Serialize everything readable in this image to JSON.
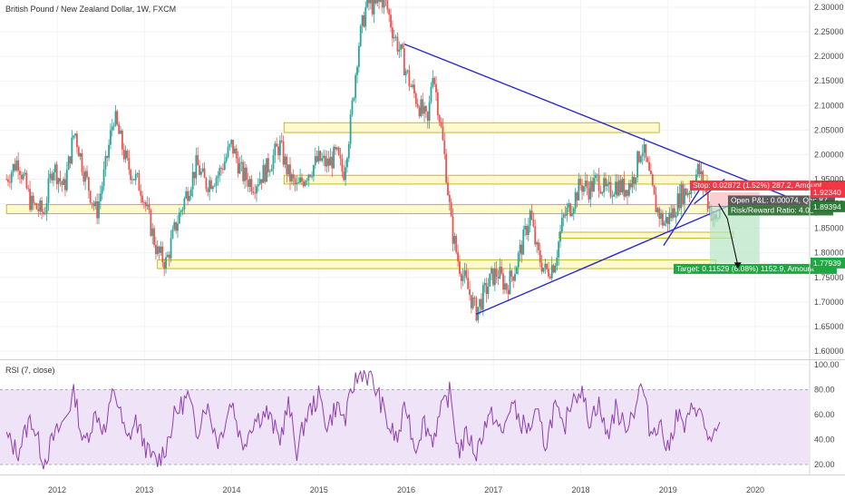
{
  "header": {
    "title": "British Pound / New Zealand Dollar, 1W, FXCM",
    "indicator_label": "RSI (7, close)"
  },
  "colors": {
    "bull": "#26a69a",
    "bear": "#ef5350",
    "trendline": "#2b2bc8",
    "zone_fill": "#fff9c4",
    "zone_stroke": "#b5a800",
    "rsi_line": "#8e3fb0",
    "rsi_band": "#efe3f7",
    "target": "#1ea844",
    "stop": "#f23645",
    "price_tag": "#2a7a36"
  },
  "chart_data": [
    {
      "type": "candlestick",
      "title": "British Pound / New Zealand Dollar, 1W, FXCM",
      "x_axis_labels": [
        "2012",
        "2013",
        "2014",
        "2015",
        "2016",
        "2017",
        "2018",
        "2019",
        "2020"
      ],
      "y_axis_labels": [
        "1.60000",
        "1.65000",
        "1.70000",
        "1.75000",
        "1.80000",
        "1.85000",
        "1.90000",
        "1.95000",
        "2.00000",
        "2.05000",
        "2.10000",
        "2.15000",
        "2.20000",
        "2.25000",
        "2.30000"
      ],
      "ylim": [
        1.58,
        2.32
      ],
      "xlim": [
        2011.42,
        2020.5
      ],
      "price_path": [
        [
          2011.42,
          1.95
        ],
        [
          2011.55,
          1.99
        ],
        [
          2011.7,
          1.9
        ],
        [
          2011.85,
          1.88
        ],
        [
          2011.95,
          1.98
        ],
        [
          2012.08,
          1.93
        ],
        [
          2012.2,
          2.05
        ],
        [
          2012.3,
          1.97
        ],
        [
          2012.45,
          1.88
        ],
        [
          2012.55,
          1.97
        ],
        [
          2012.65,
          2.08
        ],
        [
          2012.8,
          1.98
        ],
        [
          2012.9,
          1.95
        ],
        [
          2012.97,
          1.93
        ],
        [
          2013.05,
          1.87
        ],
        [
          2013.15,
          1.8
        ],
        [
          2013.25,
          1.78
        ],
        [
          2013.35,
          1.85
        ],
        [
          2013.5,
          1.93
        ],
        [
          2013.6,
          1.98
        ],
        [
          2013.7,
          1.94
        ],
        [
          2013.85,
          1.96
        ],
        [
          2014.0,
          2.02
        ],
        [
          2014.12,
          1.96
        ],
        [
          2014.25,
          1.94
        ],
        [
          2014.4,
          1.97
        ],
        [
          2014.55,
          2.02
        ],
        [
          2014.65,
          1.96
        ],
        [
          2014.75,
          1.93
        ],
        [
          2014.85,
          1.96
        ],
        [
          2015.0,
          1.99
        ],
        [
          2015.1,
          1.98
        ],
        [
          2015.2,
          2.0
        ],
        [
          2015.28,
          1.96
        ],
        [
          2015.36,
          2.06
        ],
        [
          2015.45,
          2.22
        ],
        [
          2015.55,
          2.31
        ],
        [
          2015.65,
          2.3
        ],
        [
          2015.75,
          2.32
        ],
        [
          2015.85,
          2.25
        ],
        [
          2015.95,
          2.2
        ],
        [
          2016.05,
          2.14
        ],
        [
          2016.15,
          2.1
        ],
        [
          2016.25,
          2.06
        ],
        [
          2016.3,
          2.18
        ],
        [
          2016.38,
          2.08
        ],
        [
          2016.45,
          1.98
        ],
        [
          2016.52,
          1.85
        ],
        [
          2016.6,
          1.78
        ],
        [
          2016.7,
          1.73
        ],
        [
          2016.8,
          1.68
        ],
        [
          2016.9,
          1.72
        ],
        [
          2016.98,
          1.75
        ],
        [
          2017.05,
          1.76
        ],
        [
          2017.15,
          1.73
        ],
        [
          2017.25,
          1.77
        ],
        [
          2017.35,
          1.83
        ],
        [
          2017.42,
          1.88
        ],
        [
          2017.5,
          1.8
        ],
        [
          2017.6,
          1.76
        ],
        [
          2017.7,
          1.78
        ],
        [
          2017.8,
          1.87
        ],
        [
          2017.9,
          1.9
        ],
        [
          2018.0,
          1.94
        ],
        [
          2018.1,
          1.93
        ],
        [
          2018.2,
          1.95
        ],
        [
          2018.3,
          1.92
        ],
        [
          2018.4,
          1.94
        ],
        [
          2018.5,
          1.93
        ],
        [
          2018.6,
          1.95
        ],
        [
          2018.7,
          2.02
        ],
        [
          2018.78,
          1.96
        ],
        [
          2018.85,
          1.9
        ],
        [
          2018.95,
          1.86
        ],
        [
          2019.05,
          1.88
        ],
        [
          2019.15,
          1.92
        ],
        [
          2019.25,
          1.93
        ],
        [
          2019.35,
          1.97
        ],
        [
          2019.42,
          1.93
        ],
        [
          2019.5,
          1.88
        ],
        [
          2019.55,
          1.86
        ],
        [
          2019.6,
          1.89
        ]
      ],
      "support_resistance_zones": [
        {
          "x_start": 2014.6,
          "x_end": 2018.9,
          "y_low": 2.045,
          "y_high": 2.065
        },
        {
          "x_start": 2014.6,
          "x_end": 2019.45,
          "y_low": 1.94,
          "y_high": 1.958
        },
        {
          "x_start": 2011.42,
          "x_end": 2019.45,
          "y_low": 1.88,
          "y_high": 1.898
        },
        {
          "x_start": 2017.75,
          "x_end": 2019.75,
          "y_low": 1.83,
          "y_high": 1.842
        },
        {
          "x_start": 2013.15,
          "x_end": 2019.55,
          "y_low": 1.768,
          "y_high": 1.786
        }
      ],
      "trendlines": [
        {
          "x1": 2015.98,
          "y1": 2.225,
          "x2": 2020.5,
          "y2": 1.905
        },
        {
          "x1": 2016.8,
          "y1": 1.675,
          "x2": 2019.75,
          "y2": 1.9
        },
        {
          "x1": 2019.3,
          "y1": 1.9,
          "x2": 2019.65,
          "y2": 1.95
        },
        {
          "x1": 2018.95,
          "y1": 1.815,
          "x2": 2019.42,
          "y2": 1.945
        },
        {
          "x1": 2019.28,
          "y1": 1.935,
          "x2": 2019.55,
          "y2": 1.94
        }
      ],
      "projection": [
        [
          2019.58,
          1.9
        ],
        [
          2019.68,
          1.87
        ],
        [
          2019.8,
          1.775
        ]
      ],
      "position_tool": {
        "entry": 1.89468,
        "stop_price": 1.9234,
        "target_price": 1.77939,
        "x_start": 2019.48,
        "x_end": 2020.05,
        "stop_label": "Stop: 0.02872 (1.52%) 287.2, Amount",
        "pnl_label": "Open P&L: 0.00074, Qty: 87",
        "rr_label": "Risk/Reward Ratio: 4.01",
        "target_label": "Target: 0.11529 (6.08%) 1152.9, Amount"
      },
      "price_tags": [
        {
          "value": "1.92340",
          "price": 1.9234,
          "kind": "stop"
        },
        {
          "value": "1.89468",
          "price": 1.89468,
          "kind": "entry"
        },
        {
          "value": "1.89394",
          "price": 1.89394,
          "kind": "last"
        },
        {
          "value": "1.77939",
          "price": 1.77939,
          "kind": "target"
        }
      ]
    },
    {
      "type": "line",
      "title": "RSI (7, close)",
      "y_axis_labels": [
        "20.00",
        "40.00",
        "60.00",
        "80.00",
        "100.00"
      ],
      "ylim": [
        8,
        102
      ],
      "band": [
        20,
        80
      ],
      "x": [
        2011.42,
        2011.55,
        2011.7,
        2011.85,
        2011.95,
        2012.08,
        2012.2,
        2012.3,
        2012.45,
        2012.55,
        2012.65,
        2012.8,
        2012.9,
        2013.05,
        2013.15,
        2013.25,
        2013.35,
        2013.5,
        2013.6,
        2013.7,
        2013.85,
        2014.0,
        2014.12,
        2014.25,
        2014.4,
        2014.55,
        2014.65,
        2014.75,
        2014.85,
        2015.0,
        2015.1,
        2015.2,
        2015.3,
        2015.4,
        2015.5,
        2015.6,
        2015.7,
        2015.8,
        2015.9,
        2016.0,
        2016.1,
        2016.2,
        2016.3,
        2016.4,
        2016.5,
        2016.6,
        2016.7,
        2016.8,
        2016.9,
        2017.0,
        2017.1,
        2017.2,
        2017.3,
        2017.4,
        2017.5,
        2017.6,
        2017.7,
        2017.8,
        2017.9,
        2018.0,
        2018.1,
        2018.2,
        2018.3,
        2018.4,
        2018.5,
        2018.6,
        2018.7,
        2018.8,
        2018.9,
        2019.0,
        2019.1,
        2019.2,
        2019.3,
        2019.4,
        2019.5,
        2019.6
      ],
      "values": [
        42,
        30,
        58,
        22,
        40,
        55,
        78,
        35,
        62,
        45,
        82,
        38,
        55,
        28,
        22,
        35,
        60,
        75,
        45,
        70,
        38,
        72,
        35,
        55,
        62,
        40,
        68,
        30,
        58,
        75,
        50,
        68,
        55,
        85,
        95,
        88,
        72,
        50,
        40,
        68,
        32,
        55,
        40,
        62,
        78,
        30,
        45,
        28,
        52,
        60,
        42,
        70,
        55,
        48,
        60,
        35,
        68,
        45,
        75,
        80,
        55,
        70,
        42,
        65,
        50,
        62,
        85,
        45,
        55,
        30,
        62,
        48,
        70,
        55,
        35,
        52
      ]
    }
  ]
}
